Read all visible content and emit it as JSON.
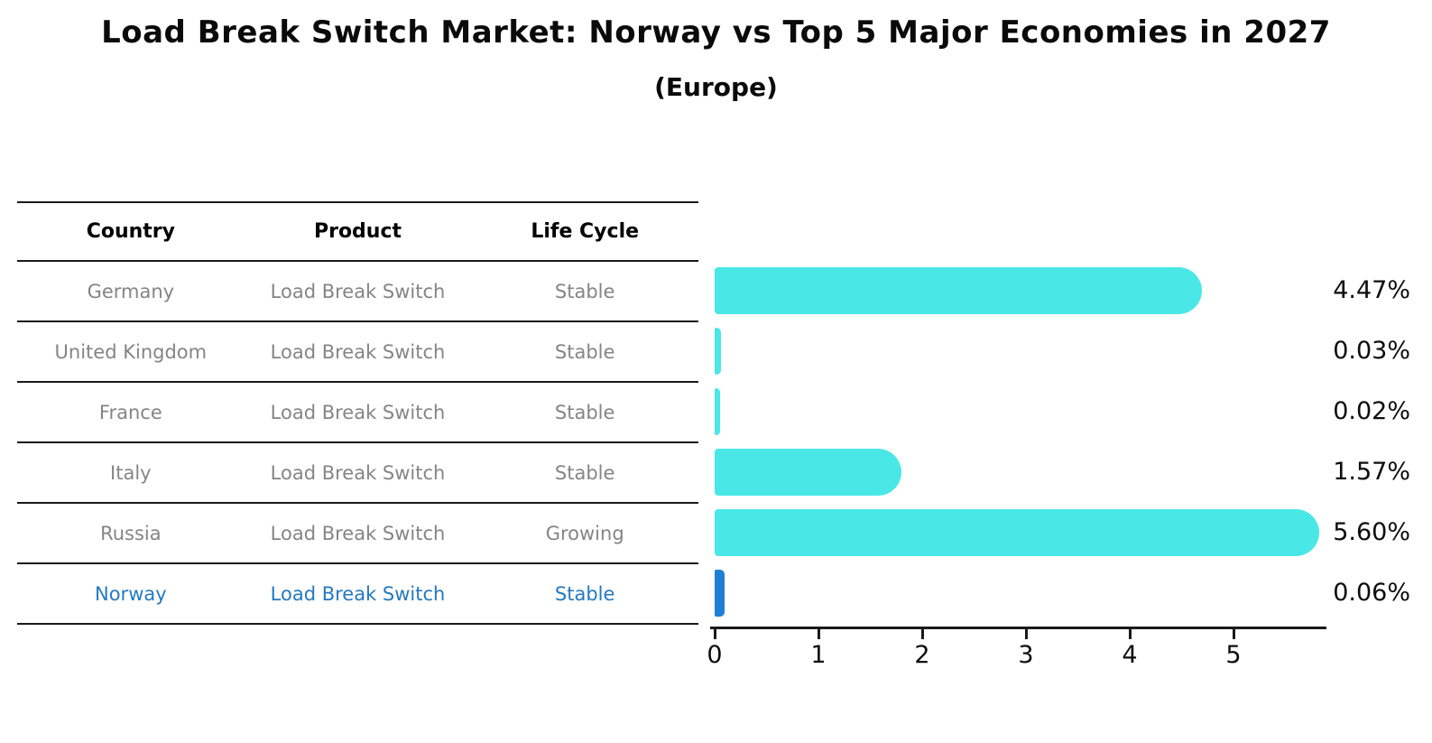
{
  "chart_data": {
    "type": "bar",
    "orientation": "horizontal",
    "title": "Load Break Switch Market: Norway vs Top 5 Major Economies in 2027",
    "subtitle": "(Europe)",
    "categories": [
      "Germany",
      "United Kingdom",
      "France",
      "Italy",
      "Russia",
      "Norway"
    ],
    "values": [
      4.47,
      0.03,
      0.02,
      1.57,
      5.6,
      0.06
    ],
    "value_labels": [
      "4.47%",
      "0.03%",
      "0.02%",
      "1.57%",
      "5.60%",
      "0.06%"
    ],
    "x_tick_labels": [
      "0",
      "1",
      "2",
      "3",
      "4",
      "5"
    ],
    "xlim": [
      0,
      5.9
    ],
    "grid": false,
    "legend": false,
    "bar_color": "#49e8e6",
    "highlight_bar_color": "#1f7fd4",
    "highlight_text_color": "#2479c2",
    "row_highlight": [
      false,
      false,
      false,
      false,
      false,
      true
    ]
  },
  "table": {
    "headers": [
      "Country",
      "Product",
      "Life Cycle"
    ],
    "rows": [
      {
        "country": "Germany",
        "product": "Load Break Switch",
        "life_cycle": "Stable"
      },
      {
        "country": "United Kingdom",
        "product": "Load Break Switch",
        "life_cycle": "Stable"
      },
      {
        "country": "France",
        "product": "Load Break Switch",
        "life_cycle": "Stable"
      },
      {
        "country": "Italy",
        "product": "Load Break Switch",
        "life_cycle": "Stable"
      },
      {
        "country": "Russia",
        "product": "Load Break Switch",
        "life_cycle": "Growing"
      },
      {
        "country": "Norway",
        "product": "Load Break Switch",
        "life_cycle": "Stable"
      }
    ]
  }
}
